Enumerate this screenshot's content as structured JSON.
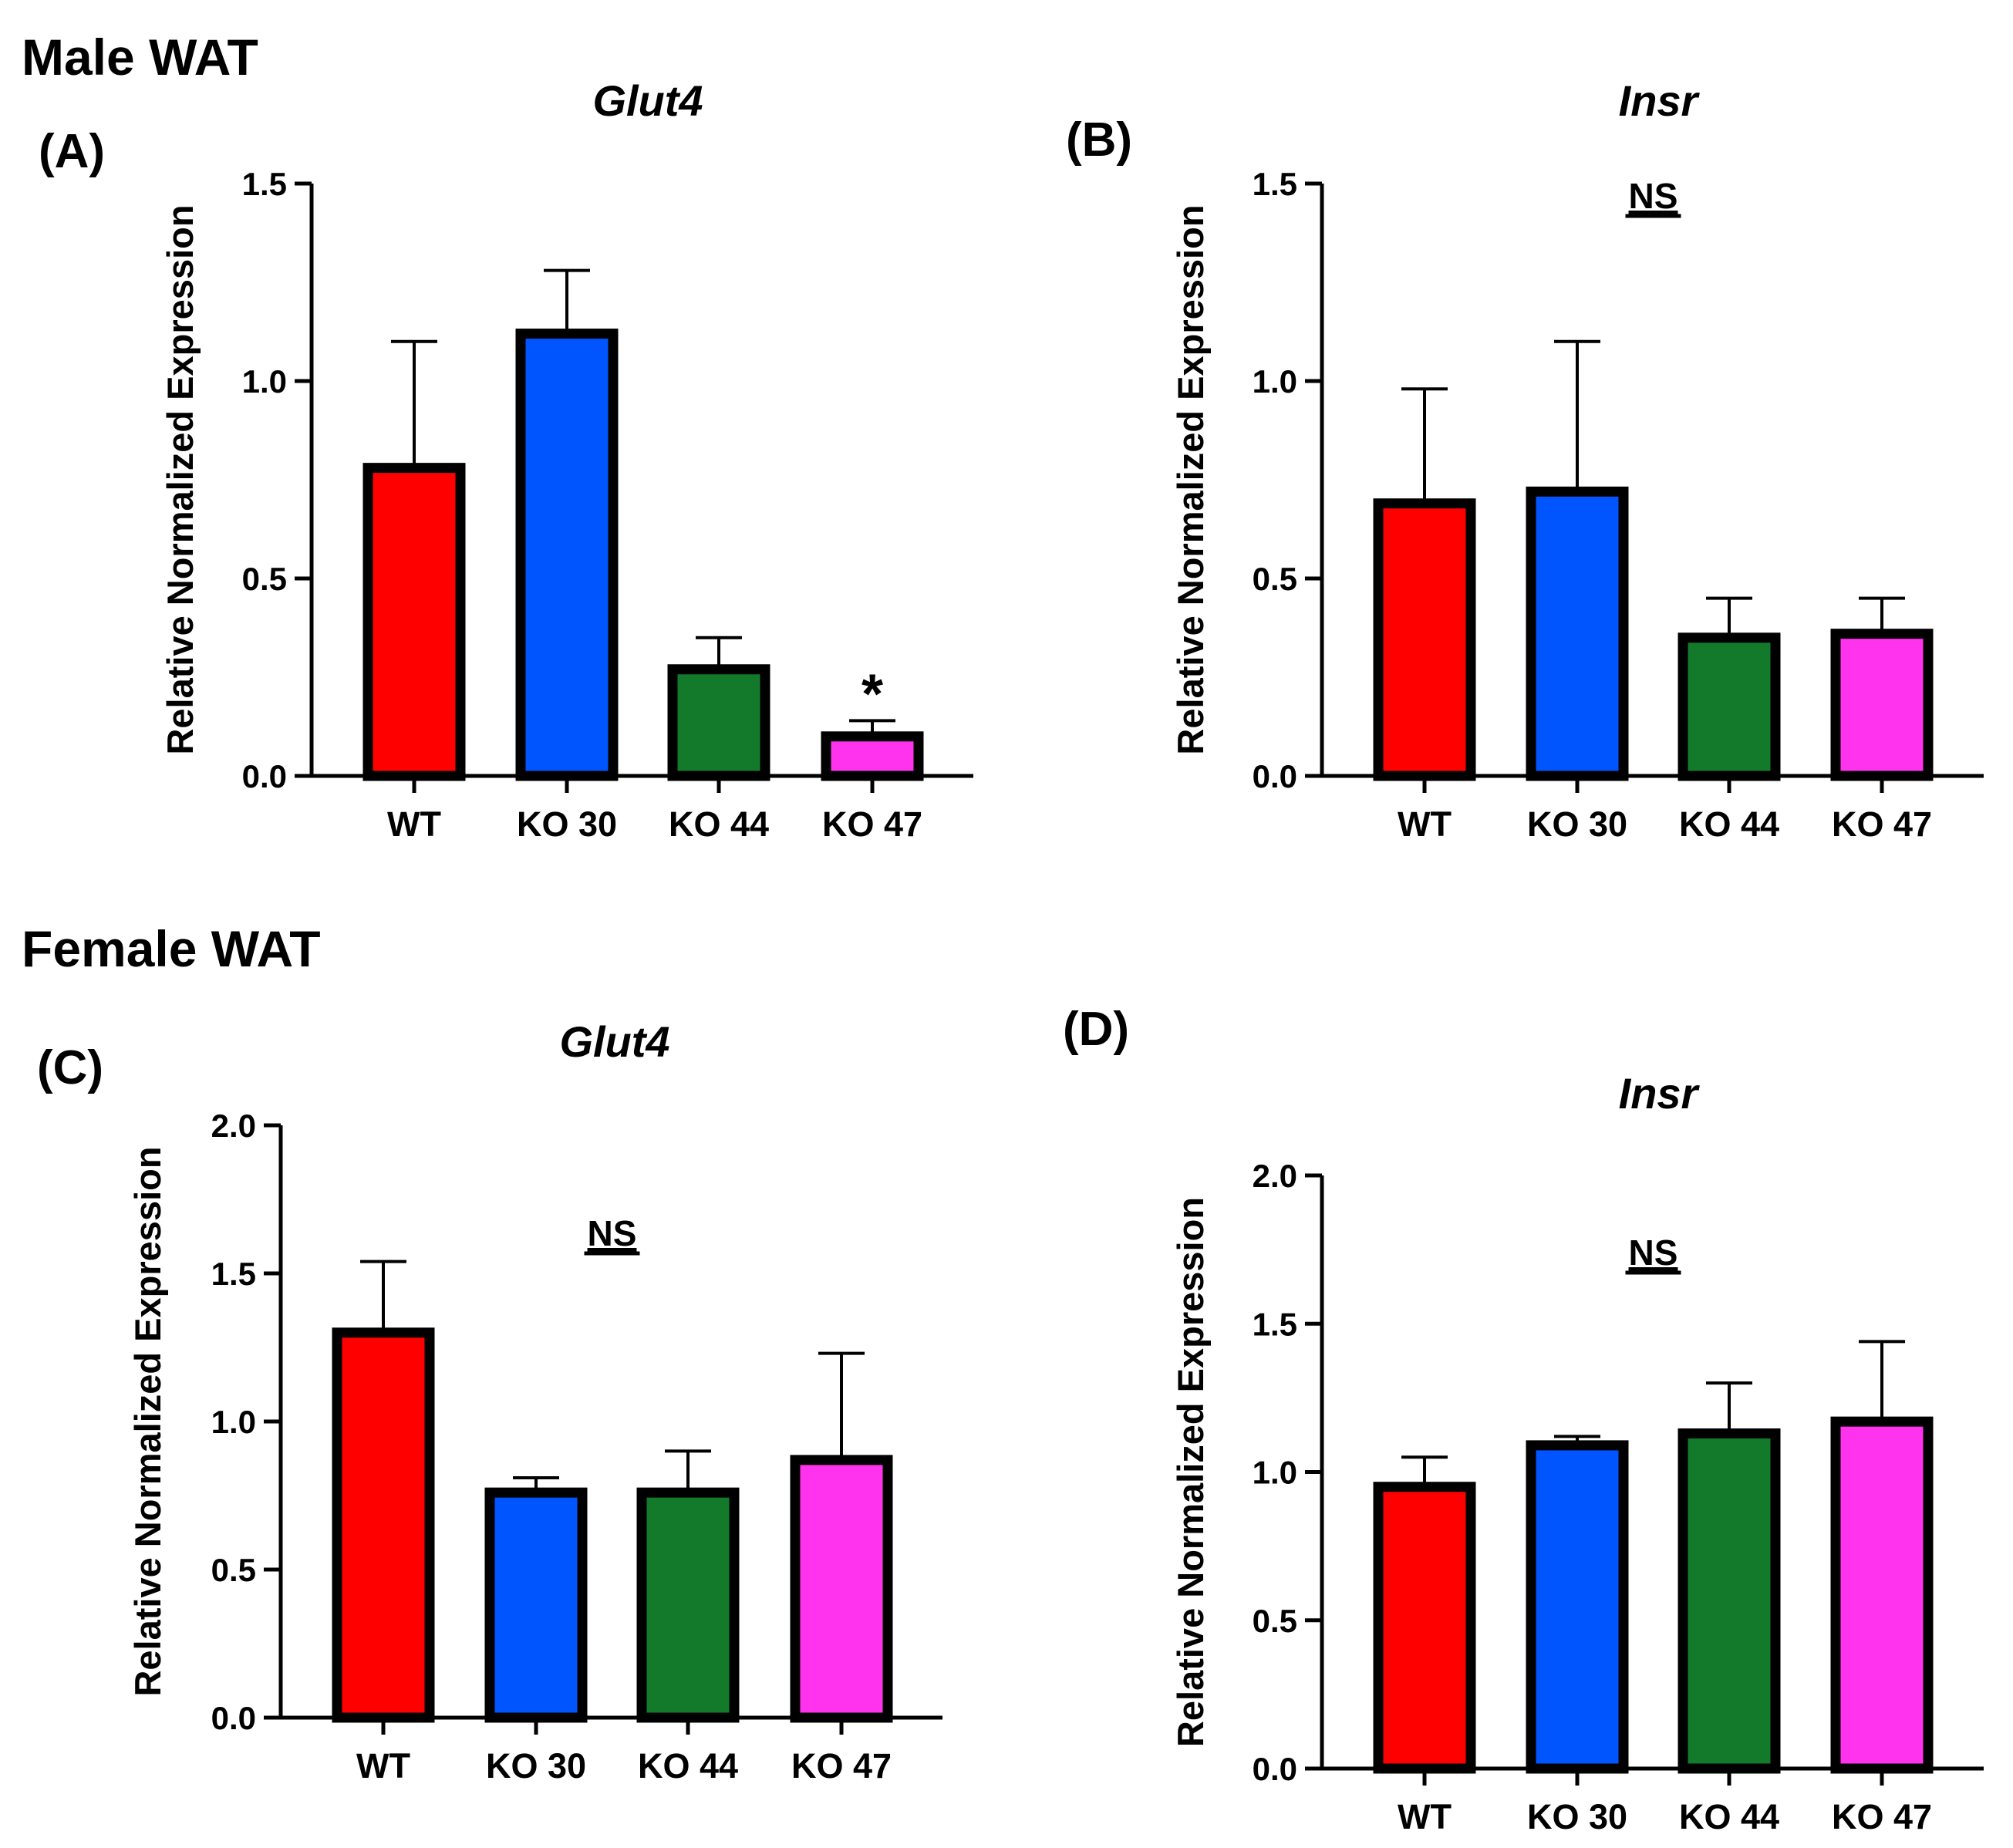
{
  "sections": {
    "male": "Male WAT",
    "female": "Female WAT"
  },
  "colors": {
    "WT": "#ff0000",
    "KO 30": "#0055ff",
    "KO 44": "#127a2a",
    "KO 47": "#ff33ee"
  },
  "chart_data": [
    {
      "panel": "(A)",
      "type": "bar",
      "title": "Glut4",
      "ylabel": "Relative Normalized Expression",
      "xlabel": "",
      "categories": [
        "WT",
        "KO 30",
        "KO 44",
        "KO 47"
      ],
      "values": [
        0.78,
        1.12,
        0.27,
        0.1
      ],
      "error_upper": [
        1.1,
        1.28,
        0.35,
        0.14
      ],
      "ylim": [
        0,
        1.5
      ],
      "yticks": [
        "0.0",
        "0.5",
        "1.0",
        "1.5"
      ],
      "ytick_values": [
        0,
        0.5,
        1.0,
        1.5
      ],
      "annotation": "",
      "markers": [
        "",
        "",
        "",
        "*"
      ]
    },
    {
      "panel": "(B)",
      "type": "bar",
      "title": "Insr",
      "ylabel": "Relative Normalized Expression",
      "xlabel": "",
      "categories": [
        "WT",
        "KO 30",
        "KO 44",
        "KO 47"
      ],
      "values": [
        0.69,
        0.72,
        0.35,
        0.36
      ],
      "error_upper": [
        0.98,
        1.1,
        0.45,
        0.45
      ],
      "ylim": [
        0,
        1.5
      ],
      "yticks": [
        "0.0",
        "0.5",
        "1.0",
        "1.5"
      ],
      "ytick_values": [
        0,
        0.5,
        1.0,
        1.5
      ],
      "annotation": "NS",
      "markers": [
        "",
        "",
        "",
        ""
      ]
    },
    {
      "panel": "(C)",
      "type": "bar",
      "title": "Glut4",
      "ylabel": "Relative Normalized Expression",
      "xlabel": "",
      "categories": [
        "WT",
        "KO 30",
        "KO 44",
        "KO 47"
      ],
      "values": [
        1.3,
        0.76,
        0.76,
        0.87
      ],
      "error_upper": [
        1.54,
        0.81,
        0.9,
        1.23
      ],
      "ylim": [
        0,
        2.0
      ],
      "yticks": [
        "0.0",
        "0.5",
        "1.0",
        "1.5",
        "2.0"
      ],
      "ytick_values": [
        0,
        0.5,
        1.0,
        1.5,
        2.0
      ],
      "annotation": "NS",
      "markers": [
        "",
        "",
        "",
        ""
      ]
    },
    {
      "panel": "(D)",
      "type": "bar",
      "title": "Insr",
      "ylabel": "Relative Normalized Expression",
      "xlabel": "",
      "categories": [
        "WT",
        "KO 30",
        "KO 44",
        "KO 47"
      ],
      "values": [
        0.95,
        1.09,
        1.13,
        1.17
      ],
      "error_upper": [
        1.05,
        1.12,
        1.3,
        1.44
      ],
      "ylim": [
        0,
        2.0
      ],
      "yticks": [
        "0.0",
        "0.5",
        "1.0",
        "1.5",
        "2.0"
      ],
      "ytick_values": [
        0,
        0.5,
        1.0,
        1.5,
        2.0
      ],
      "annotation": "NS",
      "markers": [
        "",
        "",
        "",
        ""
      ]
    }
  ]
}
